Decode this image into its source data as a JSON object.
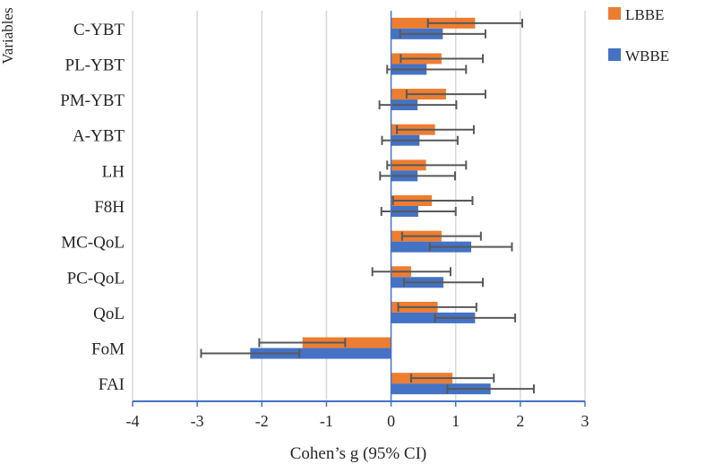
{
  "chart_data": {
    "type": "bar",
    "orientation": "horizontal",
    "title": "",
    "xlabel": "Cohen’s g (95% CI)",
    "ylabel": "Variables",
    "xlim": [
      -4,
      3
    ],
    "x_ticks": [
      "-4",
      "-3",
      "-2",
      "-1",
      "0",
      "1",
      "2",
      "3"
    ],
    "grid": true,
    "legend_position": "top-right",
    "categories": [
      "C-YBT",
      "PL-YBT",
      "PM-YBT",
      "A-YBT",
      "LH",
      "F8H",
      "MC-QoL",
      "PC-QoL",
      "QoL",
      "FoM",
      "FAI"
    ],
    "series": [
      {
        "name": "LBBE",
        "color": "#ED7D31",
        "values": [
          1.3,
          0.78,
          0.85,
          0.68,
          0.54,
          0.63,
          0.78,
          0.31,
          0.72,
          -1.37,
          0.95
        ],
        "ci_low": [
          0.57,
          0.15,
          0.24,
          0.09,
          -0.06,
          0.03,
          0.17,
          -0.29,
          0.11,
          -2.04,
          0.31
        ],
        "ci_high": [
          2.03,
          1.42,
          1.46,
          1.28,
          1.16,
          1.26,
          1.39,
          0.92,
          1.32,
          -0.71,
          1.59
        ]
      },
      {
        "name": "WBBE",
        "color": "#4472C4",
        "values": [
          0.8,
          0.55,
          0.41,
          0.44,
          0.41,
          0.42,
          1.24,
          0.81,
          1.3,
          -2.18,
          1.54
        ],
        "ci_low": [
          0.14,
          -0.06,
          -0.18,
          -0.14,
          -0.17,
          -0.15,
          0.6,
          0.2,
          0.68,
          -2.94,
          0.87
        ],
        "ci_high": [
          1.46,
          1.16,
          1.01,
          1.03,
          0.99,
          1.0,
          1.87,
          1.42,
          1.92,
          -1.42,
          2.21
        ]
      }
    ]
  }
}
